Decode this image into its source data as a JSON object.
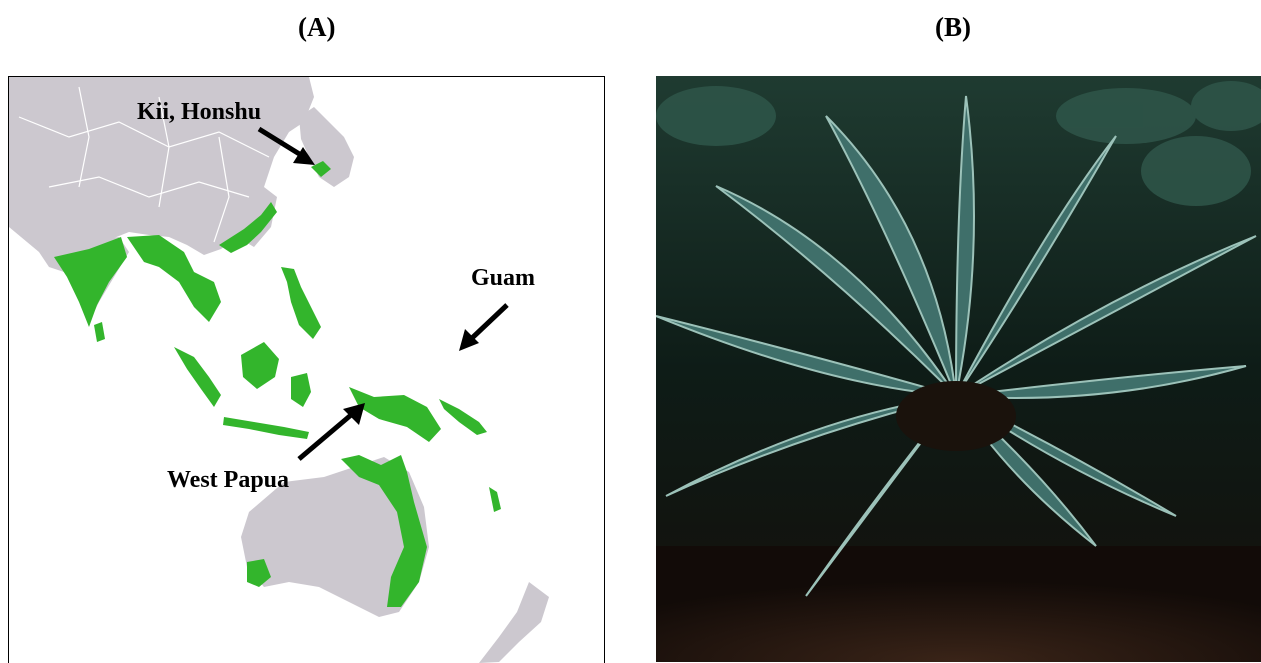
{
  "panels": {
    "a": {
      "label": "(A)"
    },
    "b": {
      "label": "(B)"
    }
  },
  "map": {
    "annotations": {
      "kii_honshu": "Kii, Honshu",
      "guam": "Guam",
      "west_papua": "West Papua"
    },
    "colors": {
      "land": "#ccc8cf",
      "distribution": "#33b52c",
      "borders": "#ffffff",
      "arrow": "#000000"
    }
  },
  "photo": {
    "subject": "cycad-plant",
    "colors": {
      "frond": "#3f6f6a",
      "background": "#0c1712",
      "leaf-litter": "#5a3826"
    }
  }
}
